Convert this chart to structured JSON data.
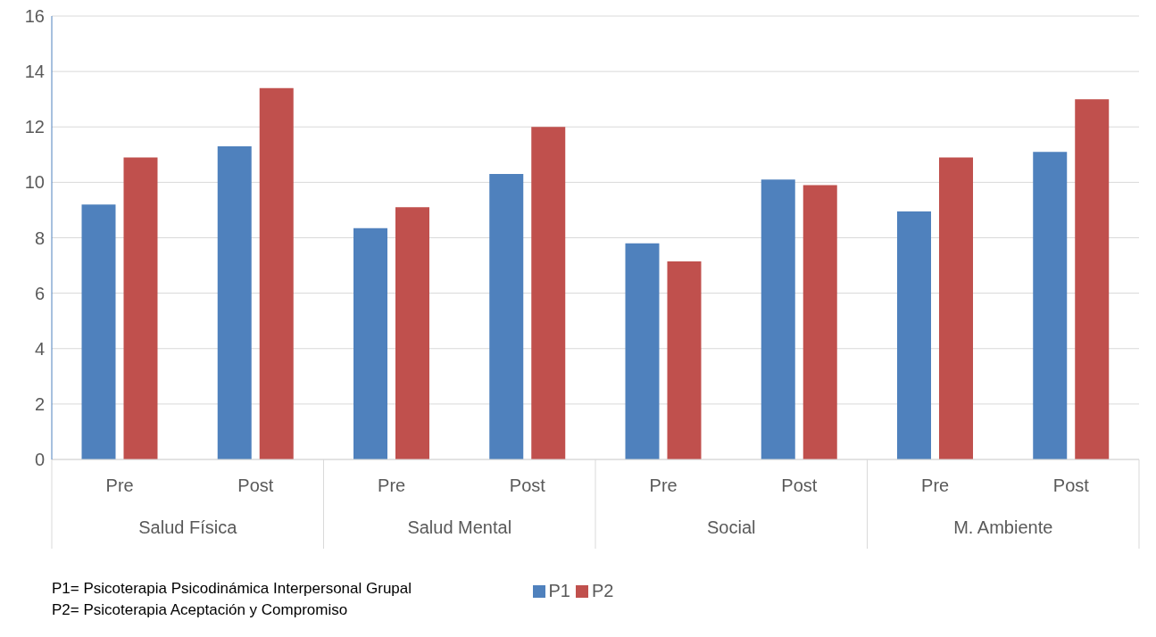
{
  "chart_data": {
    "type": "bar",
    "categories": [
      "Pre",
      "Post",
      "Pre",
      "Post",
      "Pre",
      "Post",
      "Pre",
      "Post"
    ],
    "series": [
      {
        "name": "P1",
        "color": "#4f81bd",
        "values": [
          9.2,
          11.3,
          8.35,
          10.3,
          7.8,
          10.1,
          8.95,
          11.1
        ]
      },
      {
        "name": "P2",
        "color": "#c0504d",
        "values": [
          10.9,
          13.4,
          9.1,
          12.0,
          7.15,
          9.9,
          10.9,
          13.0
        ]
      }
    ],
    "ylim": [
      0,
      16
    ],
    "yticks": [
      0,
      2,
      4,
      6,
      8,
      10,
      12,
      14,
      16
    ],
    "grid": "y",
    "legend": "bottom",
    "annotations": [
      "Salud Física",
      "Salud Mental",
      "Social",
      "M. Ambiente",
      "P1= Psicoterapia Psicodinámica Interpersonal Grupal",
      "P2= Psicoterapia Aceptación y Compromiso"
    ]
  }
}
